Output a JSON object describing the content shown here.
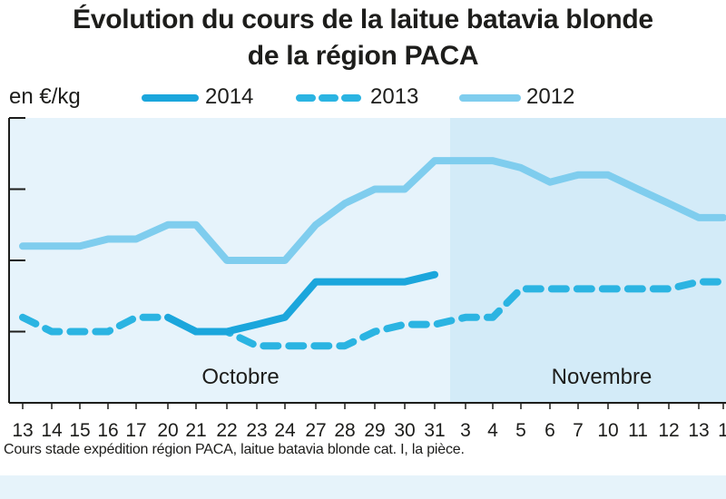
{
  "title_line1": "Évolution du cours de la laitue batavia blonde",
  "title_line2": "de la région PACA",
  "unit_label": "en €/kg",
  "footnote": "Cours stade expédition région PACA, laitue batavia blonde cat. I, la pièce.",
  "colors": {
    "s2014": "#1ba6dc",
    "s2013": "#2bb4e2",
    "s2012": "#7fcdee",
    "panel_left": "#e6f3fb",
    "panel_right": "#d3ebf8",
    "axis": "#1d1d1b"
  },
  "chart_data": {
    "type": "line",
    "title": "Évolution du cours de la laitue batavia blonde de la région PACA",
    "ylabel": "en €/kg",
    "categories": [
      "13",
      "14",
      "15",
      "16",
      "17",
      "20",
      "21",
      "22",
      "23",
      "24",
      "27",
      "28",
      "29",
      "30",
      "31",
      "3",
      "4",
      "5",
      "6",
      "7",
      "10",
      "11",
      "12",
      "13",
      "1"
    ],
    "months": [
      {
        "label": "Octobre",
        "start": "13",
        "end": "31"
      },
      {
        "label": "Novembre",
        "start": "3",
        "end": "1"
      }
    ],
    "y_ticks_labeled": false,
    "ylim": [
      0,
      4
    ],
    "series": [
      {
        "name": "2014",
        "style": "solid",
        "color": "#1ba6dc",
        "values": [
          null,
          null,
          null,
          null,
          null,
          1.2,
          1.0,
          1.0,
          1.1,
          1.2,
          1.7,
          1.7,
          1.7,
          1.7,
          1.8,
          null,
          null,
          null,
          null,
          null,
          null,
          null,
          null,
          null,
          null
        ]
      },
      {
        "name": "2013",
        "style": "dashed",
        "color": "#2bb4e2",
        "values": [
          1.2,
          1.0,
          1.0,
          1.0,
          1.2,
          1.2,
          1.0,
          1.0,
          0.8,
          0.8,
          0.8,
          0.8,
          1.0,
          1.1,
          1.1,
          1.2,
          1.2,
          1.6,
          1.6,
          1.6,
          1.6,
          1.6,
          1.6,
          1.7,
          1.7
        ]
      },
      {
        "name": "2012",
        "style": "solid",
        "color": "#7fcdee",
        "values": [
          2.2,
          2.2,
          2.2,
          2.3,
          2.3,
          2.5,
          2.5,
          2.0,
          2.0,
          2.0,
          2.5,
          2.8,
          3.0,
          3.0,
          3.4,
          3.4,
          3.4,
          3.3,
          3.1,
          3.2,
          3.2,
          3.0,
          2.8,
          2.6,
          2.6
        ]
      }
    ]
  }
}
